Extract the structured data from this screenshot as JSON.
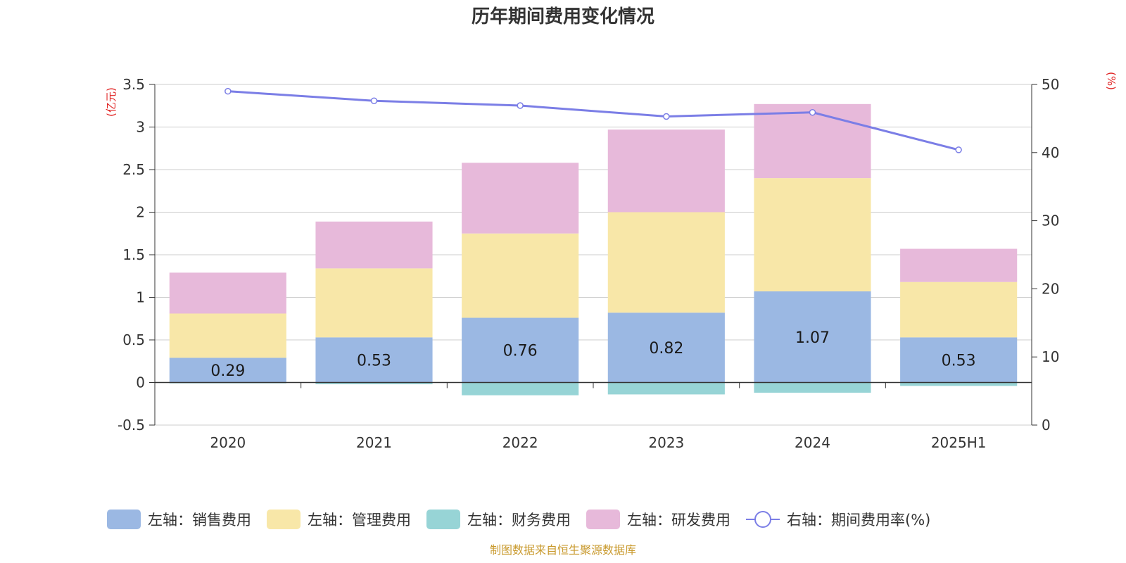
{
  "chart_data": {
    "type": "bar",
    "stacked": true,
    "title": "历年期间费用变化情况",
    "categories": [
      "2020",
      "2021",
      "2022",
      "2023",
      "2024",
      "2025H1"
    ],
    "series": [
      {
        "name": "左轴：销售费用",
        "axis": "left",
        "color": "#9bb8e3",
        "values": [
          0.29,
          0.53,
          0.76,
          0.82,
          1.07,
          0.53
        ],
        "show_labels": true
      },
      {
        "name": "左轴：管理费用",
        "axis": "left",
        "color": "#f8e7a8",
        "values": [
          0.52,
          0.81,
          0.99,
          1.18,
          1.33,
          0.65
        ],
        "show_labels": false
      },
      {
        "name": "左轴：财务费用",
        "axis": "left",
        "color": "#97d4d6",
        "values": [
          -0.01,
          -0.02,
          -0.15,
          -0.14,
          -0.12,
          -0.04
        ],
        "show_labels": false
      },
      {
        "name": "左轴：研发费用",
        "axis": "left",
        "color": "#e7b9da",
        "values": [
          0.48,
          0.55,
          0.83,
          0.97,
          0.87,
          0.39
        ],
        "show_labels": false
      }
    ],
    "line_series": {
      "name": "右轴：期间费用率(%)",
      "axis": "right",
      "color": "#7b7ee6",
      "values": [
        49.0,
        47.6,
        46.9,
        45.3,
        45.9,
        40.4
      ]
    },
    "left_axis": {
      "unit": "(亿元)",
      "min": -0.5,
      "max": 3.5,
      "ticks": [
        -0.5,
        0,
        0.5,
        1,
        1.5,
        2,
        2.5,
        3,
        3.5
      ],
      "tick_labels": [
        "-0.5",
        "0",
        "0.5",
        "1",
        "1.5",
        "2",
        "2.5",
        "3",
        "3.5"
      ]
    },
    "right_axis": {
      "unit": "(%)",
      "min": 0,
      "max": 50,
      "ticks": [
        0,
        10,
        20,
        30,
        40,
        50
      ],
      "tick_labels": [
        "0",
        "10",
        "20",
        "30",
        "40",
        "50"
      ]
    },
    "grid": true,
    "legend_position": "bottom",
    "colors": {
      "left_unit": "#e02020",
      "right_unit": "#e02020",
      "source": "#c99a2e",
      "grid": "#cccccc",
      "axis": "#333333"
    }
  },
  "source_text": "制图数据来自恒生聚源数据库"
}
